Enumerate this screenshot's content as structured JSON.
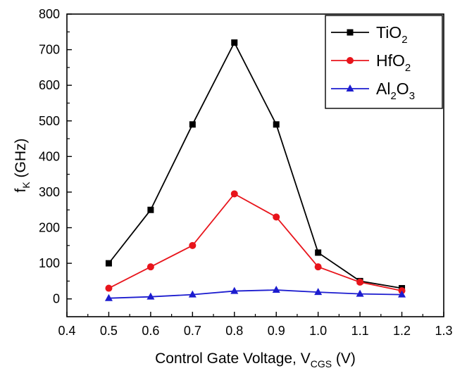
{
  "chart_data": {
    "type": "line",
    "xlabel": "Control Gate Voltage, V",
    "xlabel_sub": "CGS",
    "xlabel_suffix": " (V)",
    "ylabel": "f",
    "ylabel_sub": "K",
    "ylabel_suffix": " (GHz)",
    "xlim": [
      0.4,
      1.3
    ],
    "ylim": [
      -50,
      800
    ],
    "xticks": [
      0.4,
      0.5,
      0.6,
      0.7,
      0.8,
      0.9,
      1.0,
      1.1,
      1.2,
      1.3
    ],
    "yticks": [
      0,
      100,
      200,
      300,
      400,
      500,
      600,
      700,
      800
    ],
    "grid": false,
    "legend_position": "top-right",
    "x": [
      0.5,
      0.6,
      0.7,
      0.8,
      0.9,
      1.0,
      1.1,
      1.2
    ],
    "series": [
      {
        "name": "TiO",
        "name_sub": "2",
        "name_suffix": "",
        "color": "#000000",
        "marker": "square",
        "values": [
          100,
          250,
          490,
          720,
          490,
          130,
          50,
          30
        ]
      },
      {
        "name": "HfO",
        "name_sub": "2",
        "name_suffix": "",
        "color": "#e8141b",
        "marker": "circle",
        "values": [
          30,
          90,
          150,
          295,
          230,
          90,
          47,
          23
        ]
      },
      {
        "name": "Al",
        "name_sub": "2",
        "name_suffix": "O",
        "name_sub2": "3",
        "color": "#1c1ccf",
        "marker": "triangle",
        "values": [
          2,
          6,
          12,
          22,
          25,
          19,
          14,
          12
        ]
      }
    ]
  }
}
